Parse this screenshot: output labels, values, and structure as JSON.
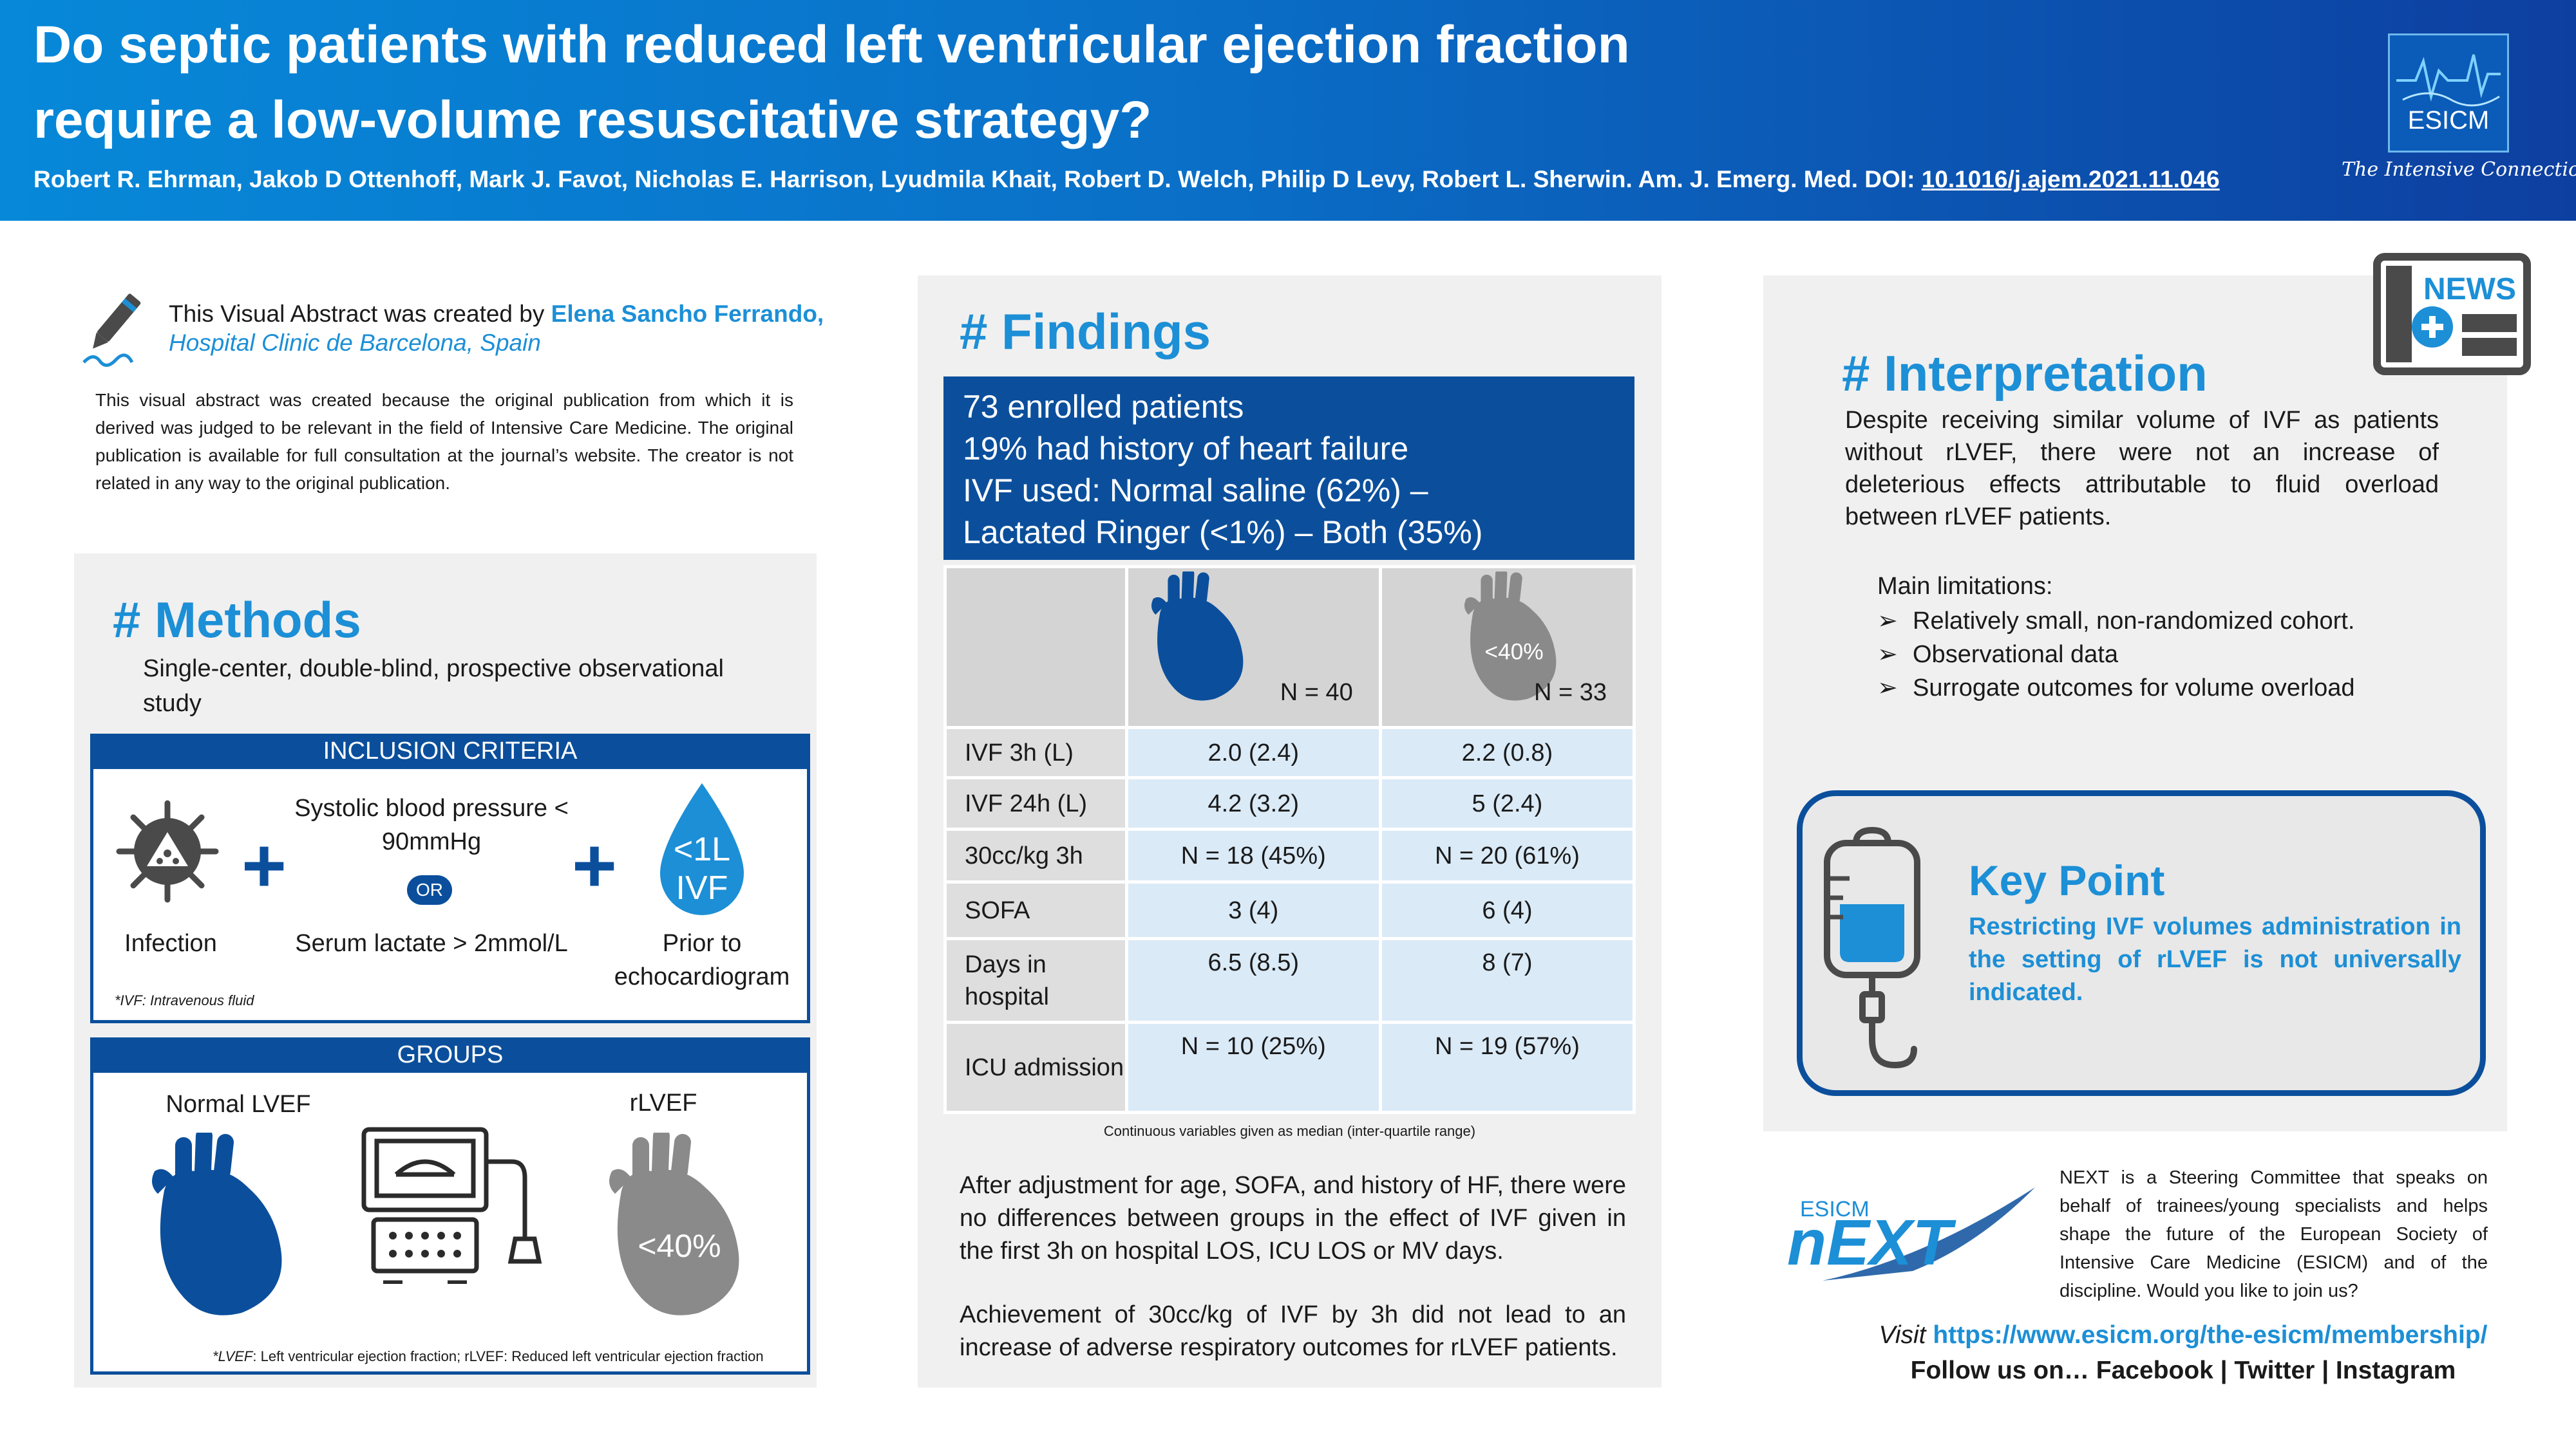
{
  "header": {
    "title_line1": "Do septic patients with reduced left ventricular ejection fraction",
    "title_line2": "require a low-volume resuscitative strategy?",
    "authors": "Robert R. Ehrman, Jakob D Ottenhoff, Mark J. Favot, Nicholas E. Harrison, Lyudmila Khait, Robert D. Welch, Philip D Levy, Robert L. Sherwin. Am. J. Emerg. Med. DOI: ",
    "doi": "10.1016/j.ajem.2021.11.046",
    "logo_text": "ESICM",
    "tagline": "The Intensive Connection"
  },
  "credit": {
    "created_by": "This Visual Abstract was created by ",
    "creator_name": "Elena Sancho Ferrando,",
    "institution": "Hospital Clinic de Barcelona, Spain",
    "disclaimer": "This visual abstract was created because the original publication from which it is derived was judged to be relevant in the field of Intensive Care Medicine. The original publication is available for full consultation at the journal’s website. The creator is not related in any way to the original publication."
  },
  "methods": {
    "title": "# Methods",
    "description": "Single-center, double-blind, prospective observational study",
    "inclusion_header": "INCLUSION CRITERIA",
    "infection_label": "Infection",
    "sbp_label": "Systolic blood pressure < 90mmHg",
    "or_label": "OR",
    "lactate_label": "Serum lactate > 2mmol/L",
    "ivf_drop_line1": "<1L",
    "ivf_drop_line2": "IVF",
    "prior_echo_label": "Prior to echocardiogram",
    "inclusion_footnote": "*IVF: Intravenous fluid",
    "groups_header": "GROUPS",
    "normal_lvef_label": "Normal LVEF",
    "rlvef_label": "rLVEF",
    "rlvef_heart_text": "<40%",
    "groups_footnote_abbr1": "LVEF",
    "groups_footnote_text1": ": Left ventricular ejection fraction; rLVEF: Reduced left ventricular ejection fraction"
  },
  "findings": {
    "title": "# Findings",
    "banner_lines": [
      "73 enrolled patients",
      "19% had history of heart failure",
      "IVF used: Normal saline (62%) –",
      "Lactated Ringer (<1%) – Both (35%)"
    ],
    "col_normal_n": "N = 40",
    "col_reduced_n": "N = 33",
    "col_reduced_heart_text": "<40%",
    "rows": [
      {
        "label": "IVF 3h  (L)",
        "normal": "2.0 (2.4)",
        "reduced": "2.2 (0.8)"
      },
      {
        "label": "IVF 24h  (L)",
        "normal": "4.2 (3.2)",
        "reduced": "5 (2.4)"
      },
      {
        "label": "30cc/kg 3h",
        "normal": "N = 18 (45%)",
        "reduced": "N = 20 (61%)"
      },
      {
        "label": "SOFA",
        "normal": "3 (4)",
        "reduced": "6 (4)"
      },
      {
        "label": "Days in hospital",
        "normal": "6.5 (8.5)",
        "reduced": "8 (7)"
      },
      {
        "label": "ICU admission",
        "normal": "N = 10 (25%)",
        "reduced": "N = 19 (57%)"
      }
    ],
    "table_note": "Continuous variables given as median (inter-quartile range)",
    "paragraph1": "After adjustment for age, SOFA, and history of HF, there were no differences between groups in the effect of IVF given in the first 3h on hospital LOS, ICU LOS or MV days.",
    "paragraph2": "Achievement of 30cc/kg of IVF by 3h did not lead to an increase of adverse respiratory outcomes for rLVEF patients."
  },
  "interpretation": {
    "title": "# Interpretation",
    "news_label": "NEWS",
    "text": "Despite receiving similar volume of IVF as patients without rLVEF, there were not an increase of deleterious effects attributable to fluid overload between rLVEF patients.",
    "limitations_title": "Main limitations:",
    "limitations": [
      "Relatively small, non-randomized cohort.",
      "Observational data",
      "Surrogate outcomes for volume overload"
    ],
    "limitation_bullet": "➢"
  },
  "key_point": {
    "title": "Key Point",
    "text": "Restricting IVF volumes administration in the setting of rLVEF is not universally indicated."
  },
  "next": {
    "logo_small": "ESICM",
    "logo_big": "nEXT",
    "description": "NEXT is a Steering Committee that speaks on behalf of trainees/young specialists and helps shape the future of the European Society of Intensive Care Medicine (ESICM) and of the discipline. Would you like to join us?",
    "visit_prefix": "Visit ",
    "url": "https://www.esicm.org/the-esicm/membership/",
    "follow": "Follow us on… Facebook | Twitter | Instagram"
  },
  "colors": {
    "brand_dark": "#0b4f9c",
    "brand_light": "#1c8fd6",
    "heart_gray": "#8a8a8a",
    "panel_bg": "#f0f0f0"
  }
}
